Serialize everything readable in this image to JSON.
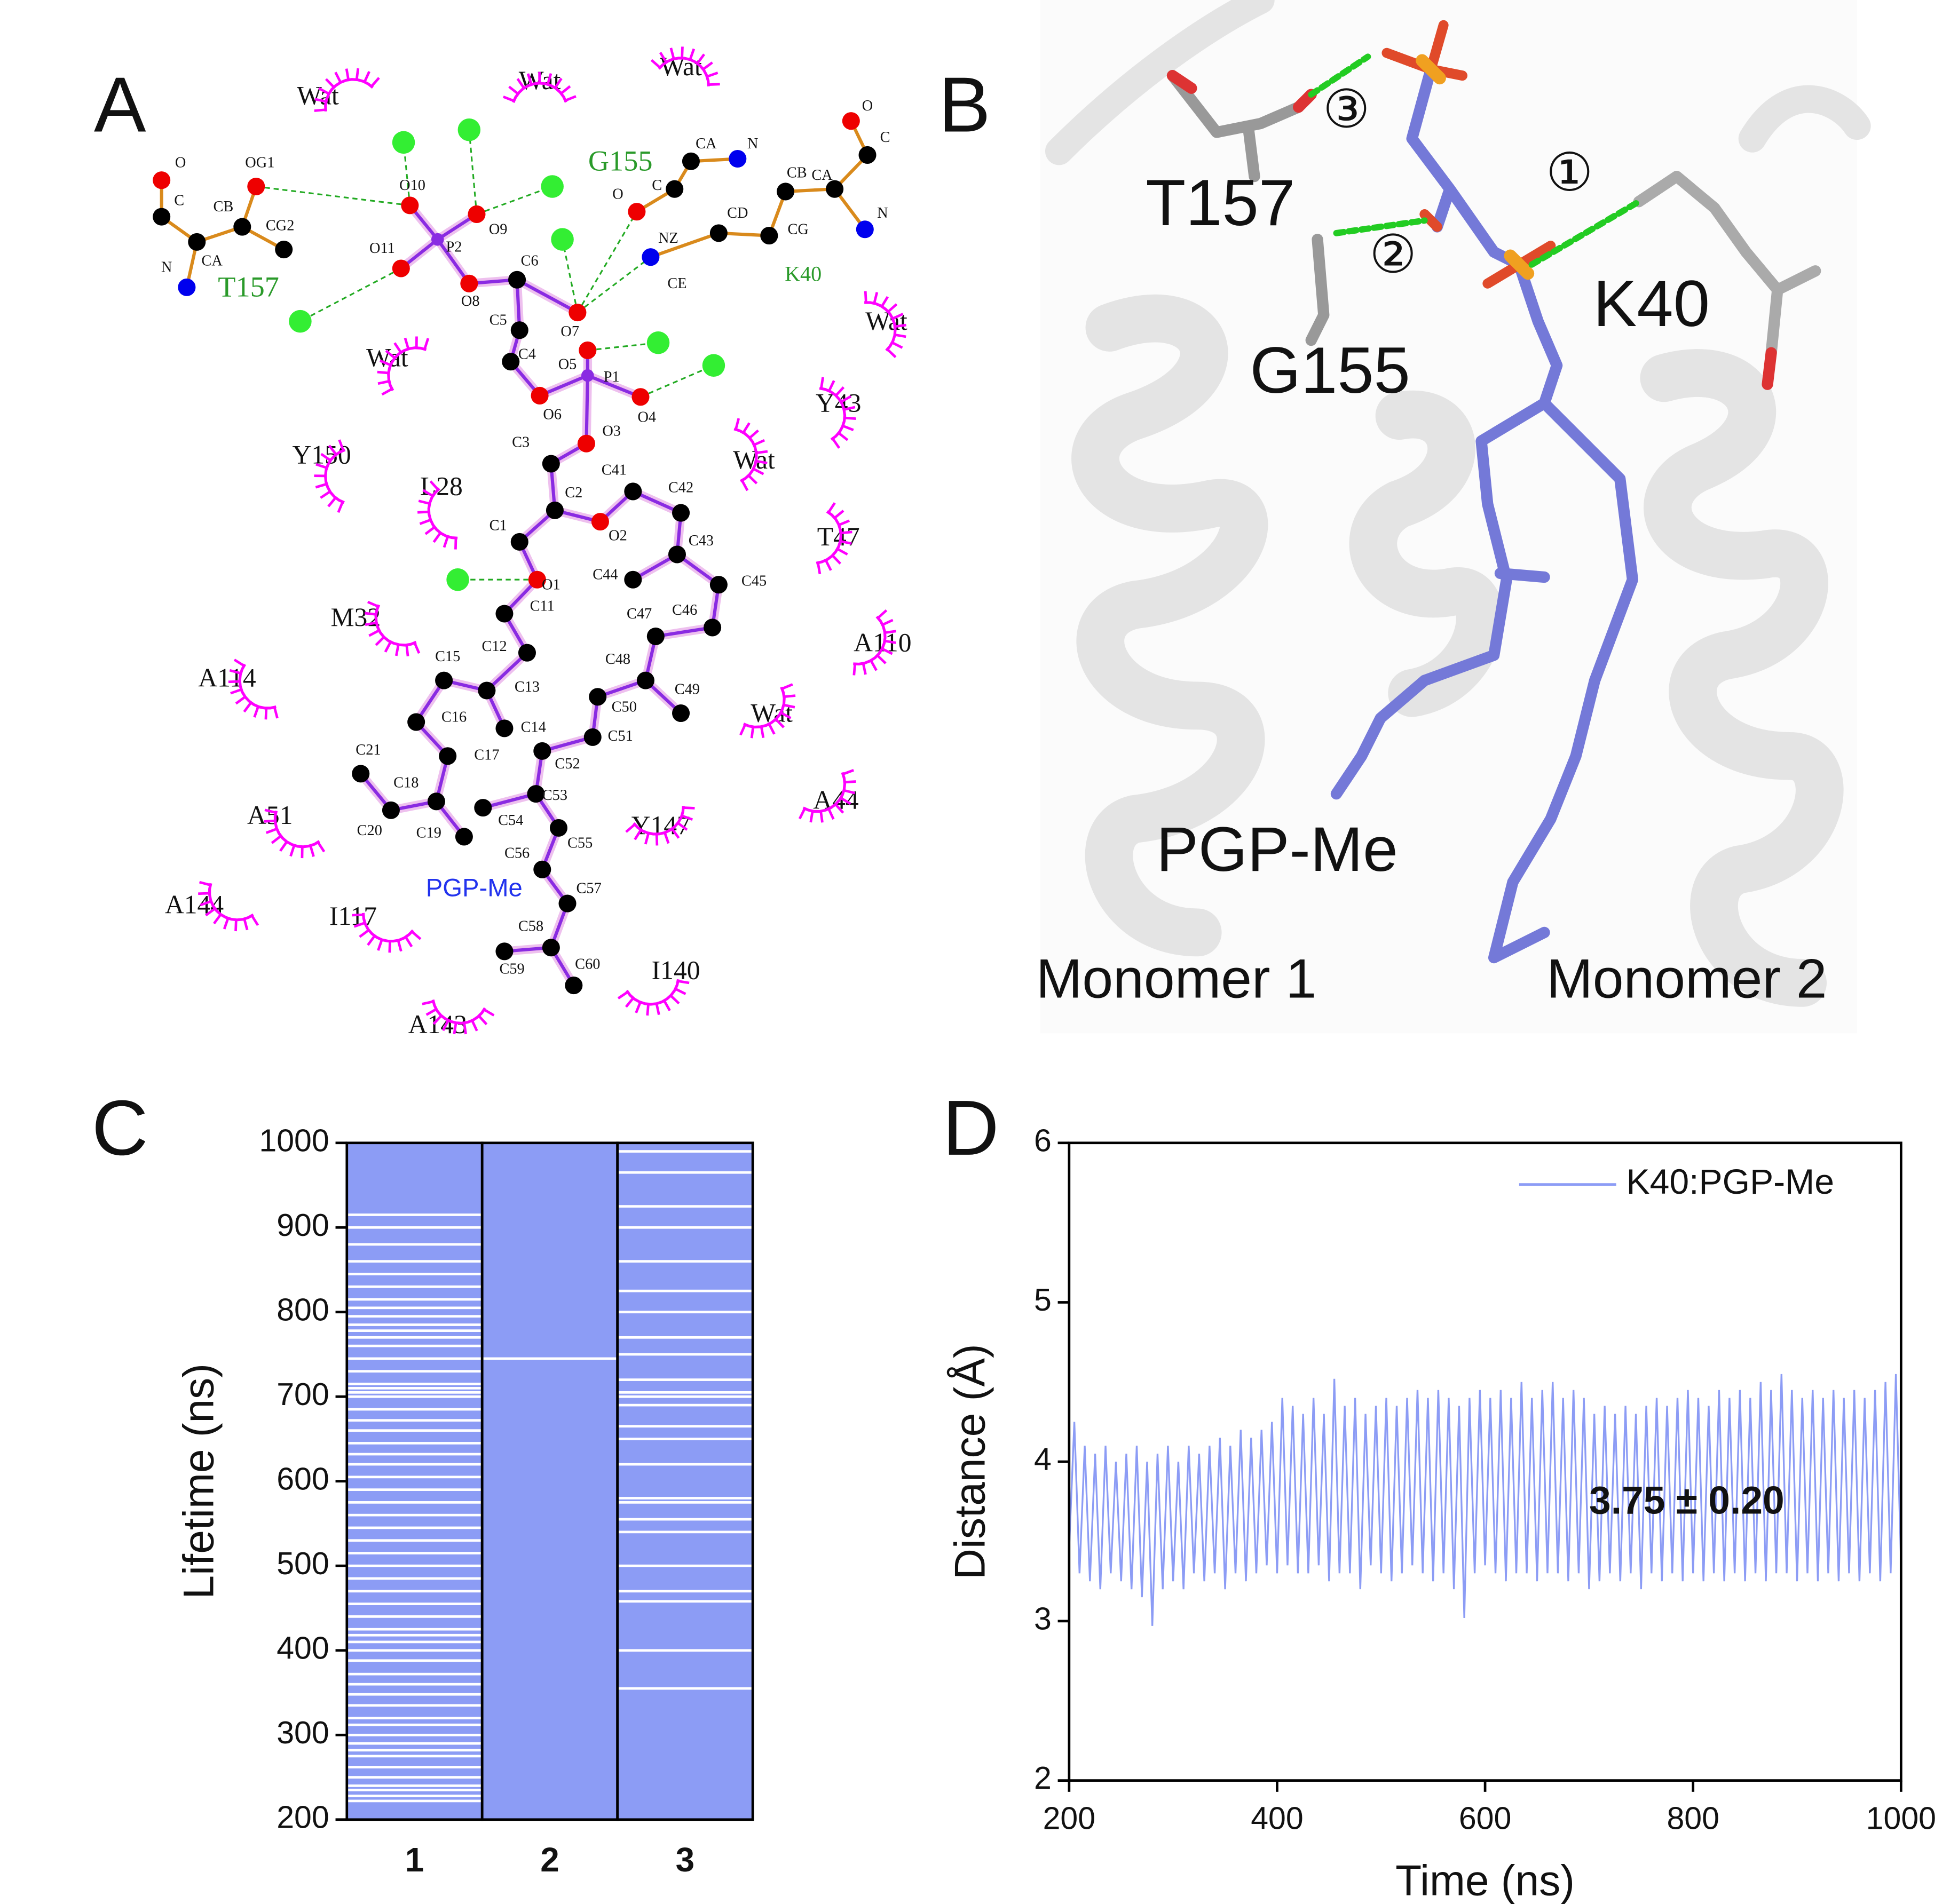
{
  "panel_letters": [
    "A",
    "B",
    "C",
    "D"
  ],
  "panel_a": {
    "residues": [
      "Wat",
      "Wat",
      "Wat",
      "Wat",
      "Wat",
      "Y43",
      "Wat",
      "Y150",
      "L28",
      "T47",
      "M32",
      "A110",
      "A114",
      "Wat",
      "A44",
      "A51",
      "Y147",
      "A144",
      "I117",
      "I140",
      "A143"
    ],
    "green_labels": [
      "T157",
      "G155",
      "K40"
    ],
    "ligand": "PGP-Me",
    "atom_labels": [
      "O",
      "C",
      "OG1",
      "CB",
      "CG2",
      "N",
      "CA",
      "O10",
      "O9",
      "O11",
      "P2",
      "O8",
      "C6",
      "C5",
      "C4",
      "O7",
      "O5",
      "P1",
      "O6",
      "O4",
      "O3",
      "C3",
      "C2",
      "C1",
      "O2",
      "C41",
      "C42",
      "C43",
      "C44",
      "C45",
      "C46",
      "C47",
      "O1",
      "C11",
      "C12",
      "C13",
      "C15",
      "C16",
      "C14",
      "C17",
      "C48",
      "C49",
      "C50",
      "C51",
      "C52",
      "C53",
      "C54",
      "C55",
      "C56",
      "C57",
      "C58",
      "C59",
      "C60",
      "C18",
      "C19",
      "C20",
      "C21",
      "O",
      "C",
      "CA",
      "N",
      "NZ",
      "CE",
      "CD",
      "CG",
      "CB",
      "CA",
      "O",
      "C",
      "N"
    ]
  },
  "panel_b": {
    "labels": [
      "T157",
      "G155",
      "K40",
      "PGP-Me",
      "Monomer 1",
      "Monomer 2"
    ],
    "bonds": [
      "③",
      "②",
      "①"
    ]
  },
  "chart_data": [
    {
      "type": "bar",
      "categories": [
        "1",
        "2",
        "3"
      ],
      "values": [
        1000,
        1000,
        1000
      ],
      "color": "#8c9cf5",
      "y_label": "Lifetime (ns)",
      "ylim": [
        200,
        1000
      ],
      "yticks": [
        200,
        300,
        400,
        500,
        600,
        700,
        800,
        900,
        1000
      ],
      "gaps": [
        [
          222,
          228,
          235,
          240,
          250,
          262,
          275,
          282,
          290,
          300,
          312,
          320,
          335,
          348,
          360,
          372,
          388,
          400,
          410,
          418,
          425,
          440,
          455,
          470,
          485,
          500,
          515,
          530,
          545,
          560,
          575,
          590,
          605,
          620,
          632,
          645,
          660,
          672,
          685,
          700,
          705,
          710,
          715,
          730,
          745,
          760,
          770,
          778,
          785,
          795,
          805,
          815,
          830,
          845,
          860,
          880,
          900,
          915
        ],
        [
          745
        ],
        [
          355,
          400,
          458,
          470,
          500,
          540,
          555,
          575,
          580,
          620,
          650,
          665,
          690,
          700,
          705,
          720,
          750,
          770,
          800,
          825,
          860,
          900,
          925,
          965,
          990
        ]
      ]
    },
    {
      "type": "line",
      "x_label": "Time (ns)",
      "y_label": "Distance (Å)",
      "legend": "upper right",
      "annotation": "3.75 ± 0.20",
      "xlim": [
        200,
        1000
      ],
      "xticks": [
        200,
        400,
        600,
        800,
        1000
      ],
      "ylim": [
        2,
        6
      ],
      "yticks": [
        2,
        3,
        4,
        5,
        6
      ],
      "x": [
        200,
        205,
        210,
        215,
        220,
        225,
        230,
        235,
        240,
        245,
        250,
        255,
        260,
        265,
        270,
        275,
        280,
        285,
        290,
        295,
        300,
        305,
        310,
        315,
        320,
        325,
        330,
        335,
        340,
        345,
        350,
        355,
        360,
        365,
        370,
        375,
        380,
        385,
        390,
        395,
        400,
        405,
        410,
        415,
        420,
        425,
        430,
        435,
        440,
        445,
        450,
        455,
        460,
        465,
        470,
        475,
        480,
        485,
        490,
        495,
        500,
        505,
        510,
        515,
        520,
        525,
        530,
        535,
        540,
        545,
        550,
        555,
        560,
        565,
        570,
        575,
        580,
        585,
        590,
        595,
        600,
        605,
        610,
        615,
        620,
        625,
        630,
        635,
        640,
        645,
        650,
        655,
        660,
        665,
        670,
        675,
        680,
        685,
        690,
        695,
        700,
        705,
        710,
        715,
        720,
        725,
        730,
        735,
        740,
        745,
        750,
        755,
        760,
        765,
        770,
        775,
        780,
        785,
        790,
        795,
        800,
        805,
        810,
        815,
        820,
        825,
        830,
        835,
        840,
        845,
        850,
        855,
        860,
        865,
        870,
        875,
        880,
        885,
        890,
        895,
        900,
        905,
        910,
        915,
        920,
        925,
        930,
        935,
        940,
        945,
        950,
        955,
        960,
        965,
        970,
        975,
        980,
        985,
        990,
        995,
        1000
      ],
      "series": [
        {
          "name": "K40:PGP-Me",
          "color": "#8c9cf5",
          "values": [
            3.45,
            4.25,
            3.3,
            4.1,
            3.25,
            4.05,
            3.2,
            4.1,
            3.3,
            4.0,
            3.25,
            4.05,
            3.2,
            4.1,
            3.15,
            4.0,
            2.97,
            4.05,
            3.2,
            4.1,
            3.25,
            4.0,
            3.2,
            4.1,
            3.3,
            4.05,
            3.25,
            4.1,
            3.3,
            4.15,
            3.2,
            4.1,
            3.3,
            4.2,
            3.25,
            4.15,
            3.3,
            4.2,
            3.35,
            4.25,
            3.3,
            4.4,
            3.35,
            4.35,
            3.3,
            4.3,
            3.3,
            4.4,
            3.35,
            4.3,
            3.25,
            4.52,
            3.3,
            4.35,
            3.3,
            4.4,
            3.2,
            4.3,
            3.35,
            4.35,
            3.3,
            4.4,
            3.25,
            4.35,
            3.3,
            4.4,
            3.35,
            4.45,
            3.3,
            4.4,
            3.25,
            4.45,
            3.3,
            4.4,
            3.2,
            4.35,
            3.02,
            4.4,
            3.3,
            4.45,
            3.35,
            4.4,
            3.3,
            4.45,
            3.25,
            4.4,
            3.3,
            4.5,
            3.3,
            4.4,
            3.25,
            4.45,
            3.3,
            4.5,
            3.3,
            4.4,
            3.25,
            4.45,
            3.3,
            4.4,
            3.2,
            4.3,
            3.25,
            4.35,
            3.3,
            4.3,
            3.25,
            4.35,
            3.3,
            4.3,
            3.2,
            4.35,
            3.3,
            4.4,
            3.25,
            4.35,
            3.3,
            4.4,
            3.25,
            4.45,
            3.3,
            4.4,
            3.25,
            4.35,
            3.3,
            4.45,
            3.25,
            4.4,
            3.3,
            4.45,
            3.25,
            4.4,
            3.3,
            4.5,
            3.25,
            4.45,
            3.3,
            4.55,
            3.3,
            4.45,
            3.25,
            4.4,
            3.3,
            4.45,
            3.25,
            4.4,
            3.3,
            4.45,
            3.25,
            4.4,
            3.3,
            4.45,
            3.25,
            4.4,
            3.3,
            4.45,
            3.25,
            4.5,
            3.3,
            4.55,
            3.35
          ]
        }
      ]
    }
  ]
}
